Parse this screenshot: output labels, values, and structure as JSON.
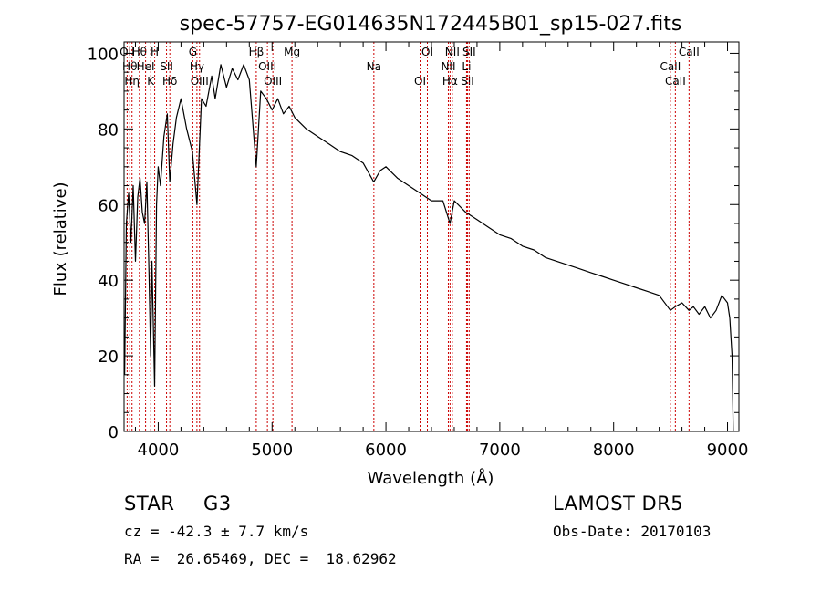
{
  "chart_data": {
    "type": "line",
    "title": "spec-57757-EG014635N172445B01_sp15-027.fits",
    "xlabel": "Wavelength (Å)",
    "ylabel": "Flux (relative)",
    "xlim": [
      3700,
      9100
    ],
    "ylim": [
      0,
      103
    ],
    "xticks": [
      4000,
      5000,
      6000,
      7000,
      8000,
      9000
    ],
    "yticks": [
      0,
      20,
      40,
      60,
      80,
      100
    ],
    "grid": false,
    "line_color": "#000000",
    "marker_color": "#cc0000",
    "series": [
      {
        "x": [
          3705,
          3720,
          3740,
          3760,
          3780,
          3800,
          3820,
          3840,
          3860,
          3880,
          3900,
          3920,
          3933,
          3945,
          3968,
          3985,
          4000,
          4020,
          4050,
          4080,
          4101,
          4130,
          4160,
          4200,
          4250,
          4300,
          4340,
          4380,
          4420,
          4470,
          4500,
          4550,
          4600,
          4650,
          4700,
          4750,
          4800,
          4861,
          4900,
          4950,
          5000,
          5050,
          5100,
          5150,
          5200,
          5300,
          5400,
          5500,
          5600,
          5700,
          5800,
          5893,
          5950,
          6000,
          6100,
          6200,
          6300,
          6400,
          6500,
          6563,
          6600,
          6700,
          6800,
          6900,
          7000,
          7100,
          7200,
          7300,
          7400,
          7500,
          7600,
          7700,
          7800,
          7900,
          8000,
          8100,
          8200,
          8300,
          8400,
          8498,
          8542,
          8600,
          8662,
          8700,
          8750,
          8800,
          8850,
          8900,
          8950,
          9000,
          9020,
          9040,
          9050
        ],
        "y": [
          15,
          55,
          63,
          50,
          65,
          45,
          62,
          67,
          58,
          55,
          66,
          40,
          20,
          45,
          12,
          60,
          70,
          65,
          78,
          84,
          66,
          76,
          83,
          88,
          80,
          74,
          60,
          88,
          86,
          94,
          88,
          97,
          91,
          96,
          93,
          97,
          93,
          70,
          90,
          88,
          85,
          88,
          84,
          86,
          83,
          80,
          78,
          76,
          74,
          73,
          71,
          66,
          69,
          70,
          67,
          65,
          63,
          61,
          61,
          55,
          61,
          58,
          56,
          54,
          52,
          51,
          49,
          48,
          46,
          45,
          44,
          43,
          42,
          41,
          40,
          39,
          38,
          37,
          36,
          32,
          33,
          34,
          32,
          33,
          31,
          33,
          30,
          32,
          36,
          34,
          30,
          20,
          0
        ]
      }
    ],
    "lines": [
      {
        "wl": 3727,
        "label": "OII"
      },
      {
        "wl": 3750,
        "label": "Hθ"
      },
      {
        "wl": 3770,
        "label": "Hη"
      },
      {
        "wl": 3835,
        "label": "Hθ"
      },
      {
        "wl": 3889,
        "label": "HeI"
      },
      {
        "wl": 3934,
        "label": "K"
      },
      {
        "wl": 3969,
        "label": "H"
      },
      {
        "wl": 4073,
        "label": "SII"
      },
      {
        "wl": 4102,
        "label": "Hδ"
      },
      {
        "wl": 4304,
        "label": "G"
      },
      {
        "wl": 4340,
        "label": "Hγ"
      },
      {
        "wl": 4363,
        "label": "OIII"
      },
      {
        "wl": 4861,
        "label": "Hβ"
      },
      {
        "wl": 4959,
        "label": "OIII"
      },
      {
        "wl": 5007,
        "label": "OIII"
      },
      {
        "wl": 5175,
        "label": "Mg"
      },
      {
        "wl": 5894,
        "label": "Na"
      },
      {
        "wl": 6300,
        "label": "OI"
      },
      {
        "wl": 6364,
        "label": "OI"
      },
      {
        "wl": 6548,
        "label": "NII"
      },
      {
        "wl": 6563,
        "label": "Hα"
      },
      {
        "wl": 6583,
        "label": "NII"
      },
      {
        "wl": 6708,
        "label": "Li"
      },
      {
        "wl": 6716,
        "label": "SII"
      },
      {
        "wl": 6731,
        "label": "SII"
      },
      {
        "wl": 8498,
        "label": "CaII"
      },
      {
        "wl": 8542,
        "label": "CaII"
      },
      {
        "wl": 8662,
        "label": "CaII"
      }
    ]
  },
  "info": {
    "obj_class": "STAR",
    "subclass": "G3",
    "survey": "LAMOST DR5",
    "cz": "cz = -42.3 ± 7.7 km/s",
    "obs_date": "Obs-Date: 20170103",
    "radec": "RA =  26.65469, DEC =  18.62962"
  }
}
